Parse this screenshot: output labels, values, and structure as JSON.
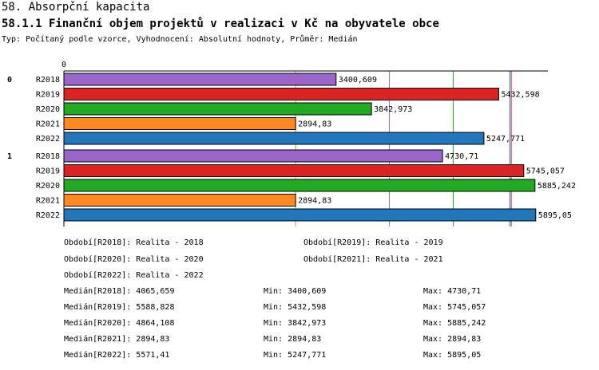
{
  "header": {
    "title": "58. Absorpční kapacita",
    "subtitle": "58.1.1 Finanční objem projektů v realizaci v Kč na obyvatele obce",
    "meta": "Typ: Počítaný podle vzorce, Vyhodnocení: Absolutní hodnoty, Průměr: Medián"
  },
  "chart_data": {
    "type": "bar",
    "orientation": "horizontal",
    "x_axis_start_label": "0",
    "xlim": [
      0,
      6000
    ],
    "groups": [
      {
        "label": "0",
        "bars": [
          {
            "category": "R2018",
            "value": 3400.609,
            "label": "3400,609"
          },
          {
            "category": "R2019",
            "value": 5432.598,
            "label": "5432,598"
          },
          {
            "category": "R2020",
            "value": 3842.973,
            "label": "3842,973"
          },
          {
            "category": "R2021",
            "value": 2894.83,
            "label": "2894,83"
          },
          {
            "category": "R2022",
            "value": 5247.771,
            "label": "5247,771"
          }
        ]
      },
      {
        "label": "1",
        "bars": [
          {
            "category": "R2018",
            "value": 4730.71,
            "label": "4730,71"
          },
          {
            "category": "R2019",
            "value": 5745.057,
            "label": "5745,057"
          },
          {
            "category": "R2020",
            "value": 5885.242,
            "label": "5885,242"
          },
          {
            "category": "R2021",
            "value": 2894.83,
            "label": "2894,83"
          },
          {
            "category": "R2022",
            "value": 5895.05,
            "label": "5895,05"
          }
        ]
      }
    ],
    "series_colors": {
      "R2018": "#9966cc",
      "R2019": "#dd2222",
      "R2020": "#22aa22",
      "R2021": "#ff8822",
      "R2022": "#2277bb"
    },
    "median_lines": [
      {
        "series": "R2018",
        "value": 4065.659
      },
      {
        "series": "R2019",
        "value": 5588.828
      },
      {
        "series": "R2020",
        "value": 4864.108
      },
      {
        "series": "R2021",
        "value": 2894.83
      },
      {
        "series": "R2022",
        "value": 5571.41
      }
    ]
  },
  "legend": {
    "periods": [
      "Období[R2018]: Realita - 2018",
      "Období[R2019]: Realita - 2019",
      "Období[R2020]: Realita - 2020",
      "Období[R2021]: Realita - 2021",
      "Období[R2022]: Realita - 2022"
    ],
    "stats": [
      {
        "median": "Medián[R2018]: 4065,659",
        "min": "Min: 3400,609",
        "max": "Max: 4730,71"
      },
      {
        "median": "Medián[R2019]: 5588,828",
        "min": "Min: 5432,598",
        "max": "Max: 5745,057"
      },
      {
        "median": "Medián[R2020]: 4864,108",
        "min": "Min: 3842,973",
        "max": "Max: 5885,242"
      },
      {
        "median": "Medián[R2021]: 2894,83",
        "min": "Min: 2894,83",
        "max": "Max: 2894,83"
      },
      {
        "median": "Medián[R2022]: 5571,41",
        "min": "Min: 5247,771",
        "max": "Max: 5895,05"
      }
    ]
  }
}
